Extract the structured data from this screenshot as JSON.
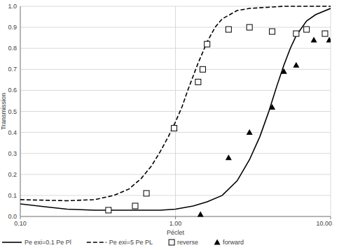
{
  "chart_data": {
    "type": "line",
    "x_label": "Péclet",
    "y_label": "Transmission",
    "log": "x",
    "grid": true,
    "legend": "bottom",
    "xlim": [
      0.1,
      10
    ],
    "xticks": [
      {
        "value": 0.1,
        "label": "0.10"
      },
      {
        "value": 1,
        "label": "1.00"
      },
      {
        "value": 10,
        "label": "10.00"
      }
    ],
    "ylim": [
      0,
      1
    ],
    "yticks": [
      {
        "value": 0,
        "label": "0.0"
      },
      0.1,
      0.2,
      0.3,
      0.4,
      0.5,
      0.6,
      0.7,
      0.8,
      0.9,
      {
        "value": 1,
        "label": "1.0"
      }
    ],
    "series": [
      {
        "name": "Pe exi=0.1 Pe Pl",
        "type": "line",
        "line_style": "solid",
        "color": "#000000",
        "x": [
          0.1,
          0.15,
          0.2,
          0.3,
          0.5,
          0.8,
          1.0,
          1.3,
          1.6,
          2.0,
          2.5,
          3.0,
          3.5,
          4.0,
          4.5,
          5.0,
          5.5,
          6.0,
          7.0,
          8.0,
          10.0
        ],
        "values": [
          0.06,
          0.045,
          0.035,
          0.03,
          0.03,
          0.03,
          0.035,
          0.05,
          0.07,
          0.1,
          0.17,
          0.27,
          0.38,
          0.5,
          0.62,
          0.72,
          0.8,
          0.86,
          0.93,
          0.96,
          0.99
        ]
      },
      {
        "name": "Pe exi=5 Pe PL",
        "type": "line",
        "line_style": "dashed",
        "color": "#000000",
        "x": [
          0.1,
          0.2,
          0.3,
          0.4,
          0.5,
          0.6,
          0.7,
          0.8,
          0.9,
          1.0,
          1.1,
          1.2,
          1.4,
          1.6,
          1.8,
          2.0,
          2.5,
          3.0,
          5.0,
          10.0
        ],
        "values": [
          0.08,
          0.075,
          0.08,
          0.1,
          0.13,
          0.18,
          0.24,
          0.31,
          0.38,
          0.45,
          0.52,
          0.6,
          0.73,
          0.83,
          0.9,
          0.94,
          0.98,
          0.99,
          1.0,
          1.0
        ]
      },
      {
        "name": "reverse",
        "type": "scatter",
        "marker": "square",
        "color": "#000000",
        "x": [
          0.37,
          0.55,
          0.65,
          0.98,
          1.4,
          1.5,
          1.6,
          2.2,
          3.0,
          4.2,
          6.0,
          7.0,
          9.2
        ],
        "values": [
          0.03,
          0.05,
          0.11,
          0.42,
          0.64,
          0.7,
          0.82,
          0.89,
          0.9,
          0.88,
          0.87,
          0.89,
          0.87
        ]
      },
      {
        "name": "forward",
        "type": "scatter",
        "marker": "triangle",
        "color": "#000000",
        "x": [
          1.45,
          2.2,
          3.0,
          4.2,
          5.0,
          6.0,
          7.8,
          9.8
        ],
        "values": [
          0.01,
          0.28,
          0.4,
          0.52,
          0.69,
          0.72,
          0.84,
          0.84
        ]
      }
    ]
  }
}
